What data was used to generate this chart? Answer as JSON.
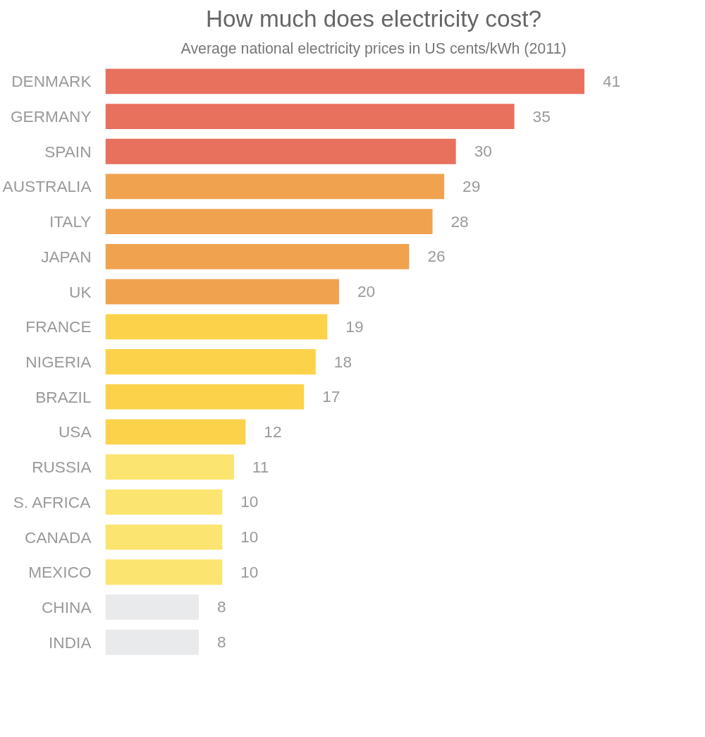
{
  "chart_data": {
    "type": "bar",
    "orientation": "horizontal",
    "title": "How much does electricity cost?",
    "subtitle": "Average national electricity prices in US cents/kWh (2011)",
    "categories": [
      "DENMARK",
      "GERMANY",
      "SPAIN",
      "AUSTRALIA",
      "ITALY",
      "JAPAN",
      "UK",
      "FRANCE",
      "NIGERIA",
      "BRAZIL",
      "USA",
      "RUSSIA",
      "S. AFRICA",
      "CANADA",
      "MEXICO",
      "CHINA",
      "INDIA"
    ],
    "values": [
      41,
      35,
      30,
      29,
      28,
      26,
      20,
      19,
      18,
      17,
      12,
      11,
      10,
      10,
      10,
      8,
      8
    ],
    "colors": [
      "#e8715e",
      "#e8715e",
      "#e8715e",
      "#f0a24f",
      "#f0a24f",
      "#f0a24f",
      "#f0a24f",
      "#fcd24a",
      "#fcd24a",
      "#fcd24a",
      "#fcd24a",
      "#fbe46f",
      "#fbe46f",
      "#fbe46f",
      "#fbe46f",
      "#e9eaec",
      "#e9eaec"
    ],
    "data_labels": true,
    "grid": false
  }
}
